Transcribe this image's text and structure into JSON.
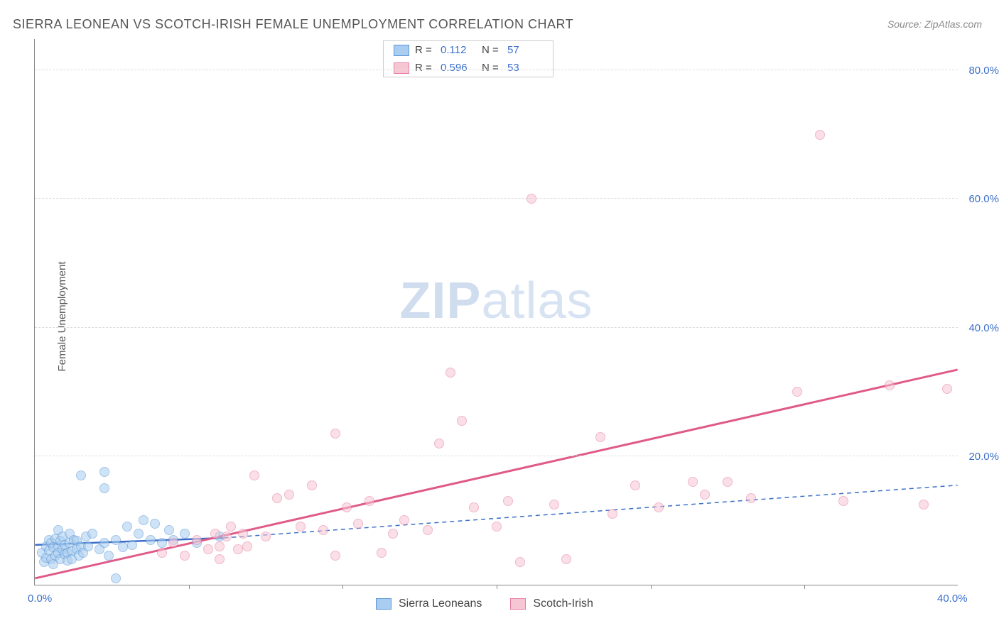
{
  "title": "SIERRA LEONEAN VS SCOTCH-IRISH FEMALE UNEMPLOYMENT CORRELATION CHART",
  "source_label": "Source: ",
  "source_name": "ZipAtlas.com",
  "ylabel": "Female Unemployment",
  "watermark_bold": "ZIP",
  "watermark_rest": "atlas",
  "chart": {
    "type": "scatter",
    "xlim": [
      0,
      40
    ],
    "ylim": [
      0,
      85
    ],
    "x_ticks": [
      0,
      40
    ],
    "x_tick_labels": [
      "0.0%",
      "40.0%"
    ],
    "x_minor_ticks": [
      6.67,
      13.33,
      20,
      26.67,
      33.33
    ],
    "y_gridlines": [
      20,
      40,
      60,
      80
    ],
    "y_tick_labels": [
      "20.0%",
      "40.0%",
      "60.0%",
      "80.0%"
    ],
    "background_color": "#ffffff",
    "grid_color": "#dddddd",
    "axis_color": "#888888",
    "tick_label_color": "#3b6fc9",
    "point_radius": 7,
    "series": [
      {
        "name": "Sierra Leoneans",
        "fill": "#a9cdf0",
        "stroke": "#5a96d6",
        "fill_opacity": 0.55,
        "R": "0.112",
        "N": "57",
        "regression": {
          "x1": 0,
          "y1": 6.2,
          "x2": 8.2,
          "y2": 7.3,
          "dashed_ext": {
            "x2": 40,
            "y2": 15.5
          },
          "color": "#3b6fc9",
          "width": 2.5
        },
        "points": [
          [
            0.3,
            5.0
          ],
          [
            0.4,
            3.5
          ],
          [
            0.5,
            6.0
          ],
          [
            0.5,
            4.2
          ],
          [
            0.6,
            5.3
          ],
          [
            0.6,
            7.0
          ],
          [
            0.7,
            4.0
          ],
          [
            0.7,
            6.5
          ],
          [
            0.8,
            3.2
          ],
          [
            0.8,
            5.8
          ],
          [
            0.9,
            7.2
          ],
          [
            0.9,
            4.5
          ],
          [
            1.0,
            6.0
          ],
          [
            1.0,
            8.5
          ],
          [
            1.0,
            5.0
          ],
          [
            1.1,
            4.0
          ],
          [
            1.1,
            6.8
          ],
          [
            1.2,
            5.5
          ],
          [
            1.2,
            7.5
          ],
          [
            1.3,
            4.8
          ],
          [
            1.3,
            6.2
          ],
          [
            1.4,
            5.0
          ],
          [
            1.4,
            3.8
          ],
          [
            1.5,
            6.5
          ],
          [
            1.5,
            8.0
          ],
          [
            1.6,
            5.2
          ],
          [
            1.6,
            4.0
          ],
          [
            1.7,
            7.0
          ],
          [
            1.8,
            5.5
          ],
          [
            1.8,
            6.8
          ],
          [
            1.9,
            4.5
          ],
          [
            2.0,
            6.0
          ],
          [
            2.0,
            17.0
          ],
          [
            2.1,
            5.0
          ],
          [
            2.2,
            7.5
          ],
          [
            2.3,
            6.0
          ],
          [
            2.5,
            8.0
          ],
          [
            2.8,
            5.5
          ],
          [
            3.0,
            17.5
          ],
          [
            3.0,
            15.0
          ],
          [
            3.0,
            6.5
          ],
          [
            3.2,
            4.5
          ],
          [
            3.5,
            7.0
          ],
          [
            3.5,
            1.0
          ],
          [
            3.8,
            5.8
          ],
          [
            4.0,
            9.0
          ],
          [
            4.2,
            6.2
          ],
          [
            4.5,
            8.0
          ],
          [
            4.7,
            10.0
          ],
          [
            5.0,
            7.0
          ],
          [
            5.2,
            9.5
          ],
          [
            5.5,
            6.5
          ],
          [
            5.8,
            8.5
          ],
          [
            6.0,
            7.0
          ],
          [
            6.5,
            8.0
          ],
          [
            7.0,
            6.5
          ],
          [
            8.0,
            7.5
          ]
        ]
      },
      {
        "name": "Scotch-Irish",
        "fill": "#f7c6d4",
        "stroke": "#e77ca0",
        "fill_opacity": 0.55,
        "R": "0.596",
        "N": "53",
        "regression": {
          "x1": 0,
          "y1": 1.0,
          "x2": 40,
          "y2": 33.5,
          "color": "#e05a88",
          "width": 3
        },
        "points": [
          [
            5.5,
            5.0
          ],
          [
            6.0,
            6.5
          ],
          [
            6.5,
            4.5
          ],
          [
            7.0,
            7.0
          ],
          [
            7.5,
            5.5
          ],
          [
            7.8,
            8.0
          ],
          [
            8.0,
            6.0
          ],
          [
            8.0,
            4.0
          ],
          [
            8.3,
            7.5
          ],
          [
            8.5,
            9.0
          ],
          [
            8.8,
            5.5
          ],
          [
            9.0,
            8.0
          ],
          [
            9.2,
            6.0
          ],
          [
            9.5,
            17.0
          ],
          [
            10.0,
            7.5
          ],
          [
            10.5,
            13.5
          ],
          [
            11.0,
            14.0
          ],
          [
            11.5,
            9.0
          ],
          [
            12.0,
            15.5
          ],
          [
            12.5,
            8.5
          ],
          [
            13.0,
            4.5
          ],
          [
            13.0,
            23.5
          ],
          [
            13.5,
            12.0
          ],
          [
            14.0,
            9.5
          ],
          [
            14.5,
            13.0
          ],
          [
            15.0,
            5.0
          ],
          [
            15.5,
            8.0
          ],
          [
            16.0,
            10.0
          ],
          [
            17.0,
            8.5
          ],
          [
            17.5,
            22.0
          ],
          [
            18.0,
            33.0
          ],
          [
            18.5,
            25.5
          ],
          [
            19.0,
            12.0
          ],
          [
            20.0,
            9.0
          ],
          [
            20.5,
            13.0
          ],
          [
            21.0,
            3.5
          ],
          [
            21.5,
            60.0
          ],
          [
            22.5,
            12.5
          ],
          [
            23.0,
            4.0
          ],
          [
            24.5,
            23.0
          ],
          [
            25.0,
            11.0
          ],
          [
            26.0,
            15.5
          ],
          [
            27.0,
            12.0
          ],
          [
            28.5,
            16.0
          ],
          [
            29.0,
            14.0
          ],
          [
            30.0,
            16.0
          ],
          [
            31.0,
            13.5
          ],
          [
            33.0,
            30.0
          ],
          [
            34.0,
            70.0
          ],
          [
            35.0,
            13.0
          ],
          [
            37.0,
            31.0
          ],
          [
            38.5,
            12.5
          ],
          [
            39.5,
            30.5
          ]
        ]
      }
    ],
    "legend_top": {
      "R_label": "R",
      "N_label": "N",
      "equals": "="
    },
    "legend_bottom_labels": [
      "Sierra Leoneans",
      "Scotch-Irish"
    ]
  }
}
